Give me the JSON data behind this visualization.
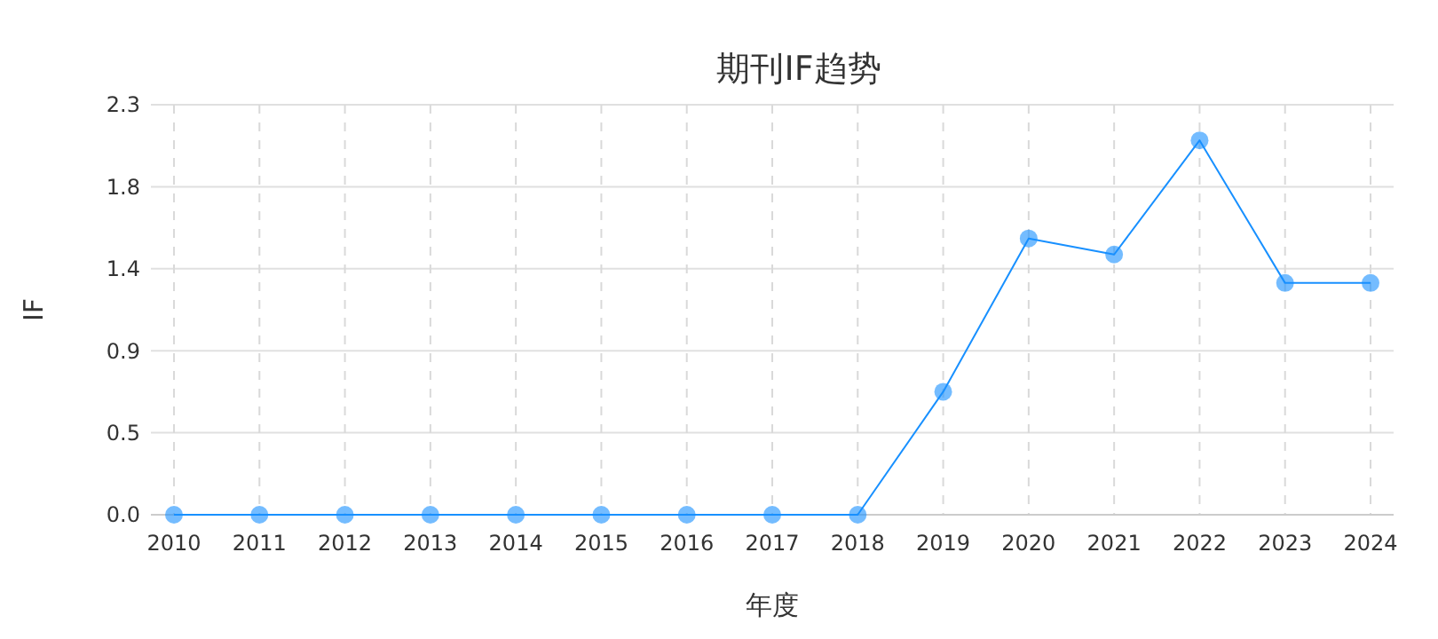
{
  "chart_data": {
    "type": "line",
    "title": "期刊IF趋势",
    "xlabel": "年度",
    "ylabel": "IF",
    "categories": [
      "2010",
      "2011",
      "2012",
      "2013",
      "2014",
      "2015",
      "2016",
      "2017",
      "2018",
      "2019",
      "2020",
      "2021",
      "2022",
      "2023",
      "2024"
    ],
    "series": [
      {
        "color": "#1890ff",
        "values": [
          0,
          0,
          0,
          0,
          0,
          0,
          0,
          0,
          0,
          0.69,
          1.55,
          1.46,
          2.1,
          1.3,
          1.3
        ]
      }
    ],
    "ylim": [
      0,
      2.3
    ],
    "yticks": [
      {
        "value": 0,
        "label": "0.0"
      },
      {
        "value": 0.46,
        "label": "0.5"
      },
      {
        "value": 0.92,
        "label": "0.9"
      },
      {
        "value": 1.38,
        "label": "1.4"
      },
      {
        "value": 1.84,
        "label": "1.8"
      },
      2.3
    ],
    "grid": true,
    "marker": "circle",
    "line_style": "solid"
  }
}
